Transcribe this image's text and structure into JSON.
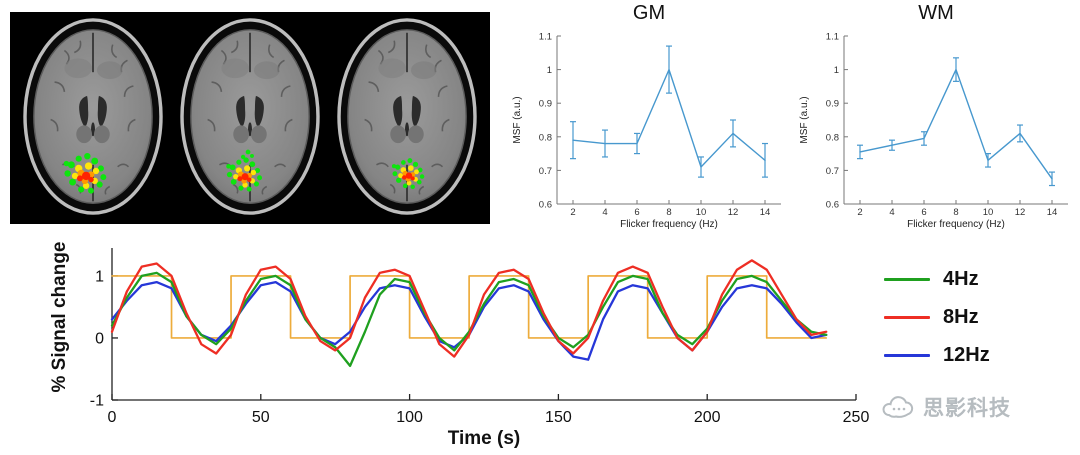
{
  "brain_panel": {
    "description": "Three axial T1 brain slices with occipital visual-cortex activation overlay",
    "slice_count": 3,
    "activation_palette": [
      "#0de50d",
      "#ffe60a",
      "#ff9a00",
      "#ff2400"
    ]
  },
  "chart_data": [
    {
      "id": "gm",
      "type": "line",
      "title": "GM",
      "xlabel": "Flicker frequency (Hz)",
      "ylabel": "MSF (a.u.)",
      "x": [
        2,
        4,
        6,
        8,
        10,
        12,
        14
      ],
      "y": [
        0.79,
        0.78,
        0.78,
        1.0,
        0.71,
        0.81,
        0.73
      ],
      "yerr": [
        0.055,
        0.04,
        0.03,
        0.07,
        0.03,
        0.04,
        0.05
      ],
      "xlim": [
        1,
        15
      ],
      "ylim": [
        0.6,
        1.1
      ],
      "xticks": [
        2,
        4,
        6,
        8,
        10,
        12,
        14
      ],
      "yticks": [
        0.6,
        0.7,
        0.8,
        0.9,
        1,
        1.1
      ],
      "ytick_labels": [
        "0.6",
        "0.7",
        "0.8",
        "0.9",
        "1",
        "1.1"
      ],
      "line_color": "#4798ce",
      "grid": false,
      "legend_position": "none"
    },
    {
      "id": "wm",
      "type": "line",
      "title": "WM",
      "xlabel": "Flicker frequency (Hz)",
      "ylabel": "MSF (a.u.)",
      "x": [
        2,
        4,
        6,
        8,
        10,
        12,
        14
      ],
      "y": [
        0.755,
        0.775,
        0.795,
        1.0,
        0.73,
        0.81,
        0.675
      ],
      "yerr": [
        0.02,
        0.015,
        0.02,
        0.035,
        0.02,
        0.025,
        0.02
      ],
      "xlim": [
        1,
        15
      ],
      "ylim": [
        0.6,
        1.1
      ],
      "xticks": [
        2,
        4,
        6,
        8,
        10,
        12,
        14
      ],
      "yticks": [
        0.6,
        0.7,
        0.8,
        0.9,
        1,
        1.1
      ],
      "ytick_labels": [
        "0.6",
        "0.7",
        "0.8",
        "0.9",
        "1",
        "1.1"
      ],
      "line_color": "#4798ce",
      "grid": false,
      "legend_position": "none"
    },
    {
      "id": "timeseries",
      "type": "line",
      "title": "",
      "xlabel": "Time (s)",
      "ylabel": "% Signal change",
      "xlim": [
        0,
        250
      ],
      "ylim": [
        -1,
        1.45
      ],
      "xticks": [
        0,
        50,
        100,
        150,
        200,
        250
      ],
      "yticks": [
        -1,
        0,
        1
      ],
      "ytick_labels": [
        "-1",
        "0",
        "1"
      ],
      "t": [
        0,
        5,
        10,
        15,
        20,
        25,
        30,
        35,
        40,
        45,
        50,
        55,
        60,
        65,
        70,
        75,
        80,
        85,
        90,
        95,
        100,
        105,
        110,
        115,
        120,
        125,
        130,
        135,
        140,
        145,
        150,
        155,
        160,
        165,
        170,
        175,
        180,
        185,
        190,
        195,
        200,
        205,
        210,
        215,
        220,
        225,
        230,
        235,
        240
      ],
      "series": [
        {
          "name": "4Hz",
          "color": "#1fa01f",
          "y": [
            0.2,
            0.65,
            1.0,
            1.05,
            0.9,
            0.35,
            0.05,
            -0.1,
            0.15,
            0.6,
            0.95,
            1.0,
            0.85,
            0.3,
            0.0,
            -0.15,
            -0.45,
            0.1,
            0.7,
            0.95,
            0.9,
            0.4,
            0.0,
            -0.2,
            0.1,
            0.55,
            0.9,
            0.95,
            0.85,
            0.35,
            0.0,
            -0.15,
            0.05,
            0.5,
            0.9,
            1.0,
            0.95,
            0.4,
            0.05,
            -0.1,
            0.15,
            0.6,
            0.95,
            1.0,
            0.9,
            0.6,
            0.3,
            0.1,
            0.05
          ]
        },
        {
          "name": "8Hz",
          "color": "#ee2e24",
          "y": [
            0.1,
            0.75,
            1.15,
            1.2,
            1.0,
            0.4,
            -0.1,
            -0.25,
            0.05,
            0.7,
            1.1,
            1.15,
            0.95,
            0.35,
            -0.05,
            -0.2,
            0.0,
            0.65,
            1.05,
            1.1,
            1.0,
            0.45,
            -0.1,
            -0.3,
            0.05,
            0.7,
            1.05,
            1.1,
            0.95,
            0.4,
            -0.05,
            -0.25,
            0.0,
            0.6,
            1.05,
            1.15,
            1.05,
            0.5,
            0.0,
            -0.2,
            0.1,
            0.7,
            1.1,
            1.25,
            1.1,
            0.7,
            0.3,
            0.05,
            0.1
          ]
        },
        {
          "name": "12Hz",
          "color": "#2637d8",
          "y": [
            0.3,
            0.6,
            0.85,
            0.9,
            0.8,
            0.35,
            0.05,
            -0.05,
            0.2,
            0.55,
            0.85,
            0.9,
            0.75,
            0.3,
            0.0,
            -0.1,
            0.1,
            0.5,
            0.8,
            0.85,
            0.8,
            0.35,
            -0.05,
            -0.15,
            0.05,
            0.5,
            0.8,
            0.85,
            0.75,
            0.3,
            -0.05,
            -0.3,
            -0.35,
            0.3,
            0.75,
            0.85,
            0.8,
            0.4,
            0.0,
            -0.2,
            0.1,
            0.5,
            0.8,
            0.85,
            0.8,
            0.55,
            0.25,
            0.0,
            0.05
          ]
        }
      ],
      "stimulus": {
        "name": "block-stimulus",
        "color": "#edac3c",
        "high": 1,
        "low": 0,
        "on_intervals": [
          [
            0,
            20
          ],
          [
            40,
            60
          ],
          [
            80,
            100
          ],
          [
            120,
            140
          ],
          [
            160,
            180
          ],
          [
            200,
            220
          ]
        ],
        "end": 240
      },
      "grid": false,
      "legend_position": "right-outside"
    }
  ],
  "legend": {
    "items": [
      {
        "label": "4Hz",
        "color": "#1fa01f"
      },
      {
        "label": "8Hz",
        "color": "#ee2e24"
      },
      {
        "label": "12Hz",
        "color": "#2637d8"
      }
    ]
  },
  "watermark": {
    "text": "思影科技"
  }
}
